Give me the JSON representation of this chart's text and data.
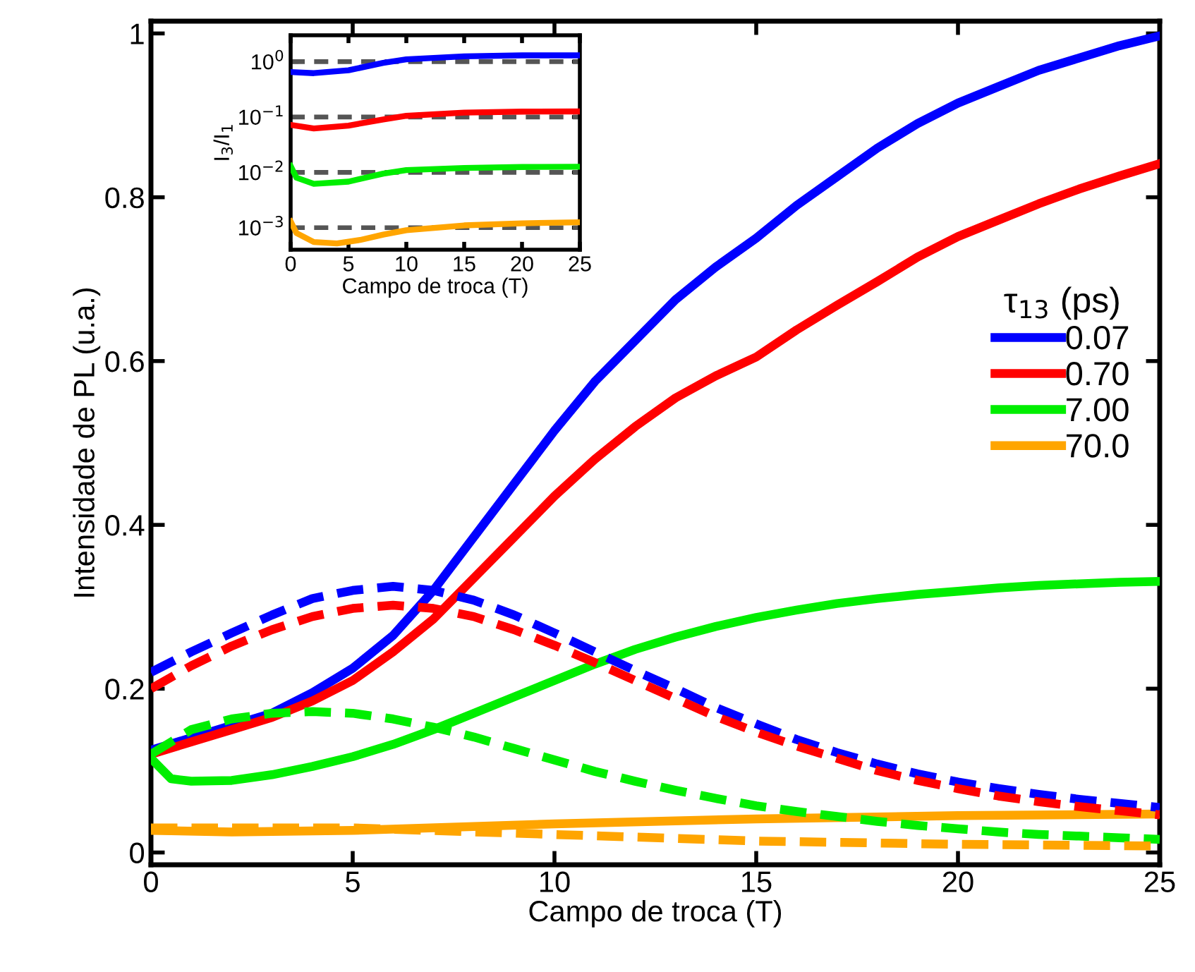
{
  "chart_data": [
    {
      "type": "line",
      "xlabel": "Campo de troca (T)",
      "ylabel": "Intensidade de PL (u.a.)",
      "legend_title": "τ$_{13}$ (ps)",
      "legend": "right",
      "grid": false,
      "xlim": [
        0,
        25
      ],
      "ylim": [
        -0.015,
        1.015
      ],
      "xticks": [
        0,
        5,
        10,
        15,
        20,
        25
      ],
      "yticks": [
        0,
        0.2,
        0.4,
        0.6,
        0.8,
        1
      ],
      "series": [
        {
          "name": "0.07",
          "color": "#0000ff",
          "line_style": "solid",
          "x": [
            0,
            1,
            2,
            3,
            4,
            5,
            6,
            7,
            8,
            9,
            10,
            11,
            12,
            13,
            14,
            15,
            16,
            17,
            18,
            19,
            20,
            21,
            22,
            23,
            24,
            25
          ],
          "values": [
            0.125,
            0.14,
            0.155,
            0.17,
            0.195,
            0.225,
            0.265,
            0.32,
            0.385,
            0.45,
            0.515,
            0.575,
            0.625,
            0.675,
            0.715,
            0.75,
            0.79,
            0.825,
            0.86,
            0.89,
            0.915,
            0.935,
            0.955,
            0.97,
            0.985,
            0.997
          ]
        },
        {
          "name": "0.70",
          "color": "#ff0000",
          "line_style": "solid",
          "x": [
            0,
            1,
            2,
            3,
            4,
            5,
            6,
            7,
            8,
            9,
            10,
            11,
            12,
            13,
            14,
            15,
            16,
            17,
            18,
            19,
            20,
            21,
            22,
            23,
            24,
            25
          ],
          "values": [
            0.12,
            0.135,
            0.15,
            0.165,
            0.185,
            0.21,
            0.245,
            0.285,
            0.335,
            0.385,
            0.435,
            0.48,
            0.52,
            0.555,
            0.582,
            0.605,
            0.638,
            0.668,
            0.697,
            0.727,
            0.752,
            0.772,
            0.792,
            0.81,
            0.826,
            0.841
          ]
        },
        {
          "name": "7.00",
          "color": "#00ee00",
          "line_style": "solid",
          "x": [
            0,
            0.5,
            1,
            2,
            3,
            4,
            5,
            6,
            7,
            8,
            9,
            10,
            11,
            12,
            13,
            14,
            15,
            16,
            17,
            18,
            19,
            20,
            21,
            22,
            23,
            24,
            25
          ],
          "values": [
            0.115,
            0.09,
            0.087,
            0.088,
            0.095,
            0.105,
            0.117,
            0.132,
            0.15,
            0.17,
            0.19,
            0.21,
            0.23,
            0.248,
            0.263,
            0.276,
            0.287,
            0.296,
            0.304,
            0.31,
            0.315,
            0.319,
            0.323,
            0.326,
            0.328,
            0.33,
            0.331
          ]
        },
        {
          "name": "70.0",
          "color": "#ffa500",
          "line_style": "solid",
          "x": [
            0,
            2,
            5,
            10,
            15,
            20,
            25
          ],
          "values": [
            0.027,
            0.025,
            0.027,
            0.035,
            0.041,
            0.045,
            0.047
          ]
        },
        {
          "color": "#0000ff",
          "line_style": "dashed",
          "x": [
            0,
            1,
            2,
            3,
            4,
            5,
            6,
            7,
            8,
            9,
            10,
            11,
            12,
            13,
            14,
            15,
            16,
            17,
            18,
            19,
            20,
            21,
            22,
            23,
            24,
            25
          ],
          "values": [
            0.22,
            0.245,
            0.268,
            0.29,
            0.31,
            0.32,
            0.325,
            0.32,
            0.308,
            0.29,
            0.268,
            0.245,
            0.222,
            0.2,
            0.177,
            0.157,
            0.138,
            0.122,
            0.108,
            0.096,
            0.086,
            0.078,
            0.071,
            0.065,
            0.06,
            0.055
          ]
        },
        {
          "color": "#ff0000",
          "line_style": "dashed",
          "x": [
            0,
            1,
            2,
            3,
            4,
            5,
            6,
            7,
            8,
            9,
            10,
            11,
            12,
            13,
            14,
            15,
            16,
            17,
            18,
            19,
            20,
            21,
            22,
            23,
            24,
            25
          ],
          "values": [
            0.2,
            0.228,
            0.252,
            0.272,
            0.288,
            0.298,
            0.302,
            0.298,
            0.288,
            0.272,
            0.253,
            0.232,
            0.21,
            0.188,
            0.166,
            0.147,
            0.13,
            0.115,
            0.1,
            0.088,
            0.078,
            0.069,
            0.062,
            0.056,
            0.051,
            0.046
          ]
        },
        {
          "color": "#00ee00",
          "line_style": "dashed",
          "x": [
            0,
            1,
            2,
            3,
            4,
            5,
            6,
            7,
            8,
            9,
            10,
            11,
            12,
            13,
            14,
            15,
            16,
            17,
            18,
            19,
            20,
            21,
            22,
            23,
            24,
            25
          ],
          "values": [
            0.12,
            0.15,
            0.163,
            0.17,
            0.172,
            0.17,
            0.163,
            0.153,
            0.141,
            0.127,
            0.113,
            0.099,
            0.087,
            0.076,
            0.066,
            0.057,
            0.05,
            0.044,
            0.038,
            0.033,
            0.029,
            0.025,
            0.022,
            0.02,
            0.018,
            0.016
          ]
        },
        {
          "color": "#ffa500",
          "line_style": "dashed",
          "x": [
            0,
            5,
            10,
            15,
            20,
            25
          ],
          "values": [
            0.03,
            0.03,
            0.022,
            0.014,
            0.01,
            0.008
          ]
        }
      ]
    },
    {
      "type": "line",
      "xlabel": "Campo de troca (T)",
      "ylabel": "I$_{3}$/I$_{1}$",
      "log": "y",
      "grid": false,
      "legend": false,
      "xlim": [
        0,
        25
      ],
      "ylim": [
        0.0004,
        3
      ],
      "xticks": [
        0,
        5,
        10,
        15,
        20,
        25
      ],
      "yticks": [
        {
          "value": 1,
          "label": "10$^{0}$"
        },
        {
          "value": 0.1,
          "label": "10$^{−1}$"
        },
        {
          "value": 0.01,
          "label": "10$^{−2}$"
        },
        {
          "value": 0.001,
          "label": "10$^{−3}$"
        }
      ],
      "ref_lines": [
        {
          "axis": "y",
          "value": 1,
          "color": "#555555",
          "line_style": "dashed"
        },
        {
          "axis": "y",
          "value": 0.1,
          "color": "#555555",
          "line_style": "dashed"
        },
        {
          "axis": "y",
          "value": 0.01,
          "color": "#555555",
          "line_style": "dashed"
        },
        {
          "axis": "y",
          "value": 0.001,
          "color": "#555555",
          "line_style": "dashed"
        }
      ],
      "series": [
        {
          "color": "#0000ff",
          "line_style": "solid",
          "x": [
            0,
            2,
            5,
            8,
            10,
            15,
            20,
            25
          ],
          "values": [
            0.65,
            0.62,
            0.7,
            0.95,
            1.1,
            1.25,
            1.3,
            1.3
          ]
        },
        {
          "color": "#ff0000",
          "line_style": "solid",
          "x": [
            0,
            2,
            5,
            8,
            10,
            15,
            20,
            25
          ],
          "values": [
            0.072,
            0.062,
            0.07,
            0.09,
            0.105,
            0.12,
            0.125,
            0.126
          ]
        },
        {
          "color": "#00ee00",
          "line_style": "solid",
          "x": [
            0,
            0.5,
            2,
            5,
            8,
            10,
            15,
            20,
            25
          ],
          "values": [
            0.013,
            0.008,
            0.0062,
            0.0068,
            0.0095,
            0.011,
            0.012,
            0.0125,
            0.0126
          ]
        },
        {
          "color": "#ffa500",
          "line_style": "solid",
          "x": [
            0,
            0.5,
            2,
            4,
            6,
            8,
            10,
            15,
            20,
            25
          ],
          "values": [
            0.0013,
            0.0008,
            0.00055,
            0.00052,
            0.0006,
            0.00075,
            0.0009,
            0.0011,
            0.0012,
            0.00125
          ]
        }
      ]
    }
  ]
}
